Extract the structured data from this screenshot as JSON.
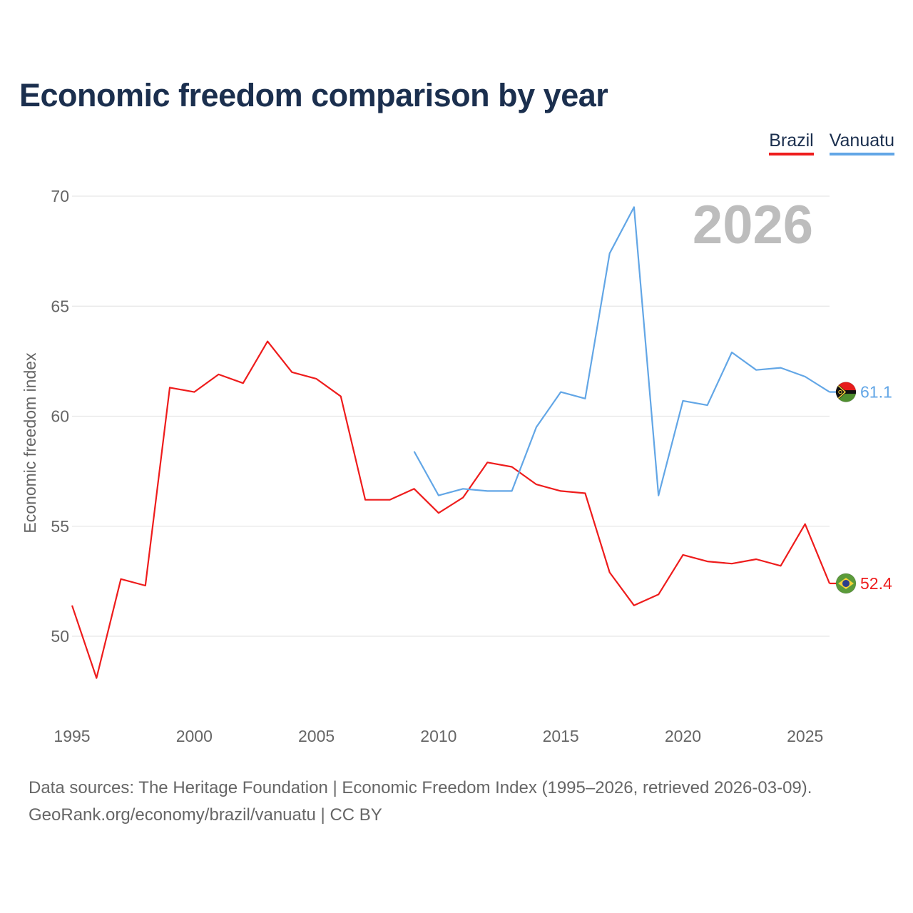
{
  "title": "Economic freedom comparison by year",
  "legend": {
    "brazil": "Brazil",
    "vanuatu": "Vanuatu"
  },
  "year_watermark": "2026",
  "footer": {
    "line1": "Data sources: The Heritage Foundation | Economic Freedom Index (1995–2026, retrieved 2026-03-09).",
    "line2": "GeoRank.org/economy/brazil/vanuatu | CC BY"
  },
  "colors": {
    "brazil": "#ee1c1c",
    "vanuatu": "#62a6e6",
    "grid": "#e6e6e6",
    "title": "#1b2f4e"
  },
  "chart_data": {
    "type": "line",
    "title": "Economic freedom comparison by year",
    "xlabel": "",
    "ylabel": "Economic freedom index",
    "xlim": [
      1995,
      2026
    ],
    "ylim": [
      46,
      71
    ],
    "x_ticks": [
      1995,
      2000,
      2005,
      2010,
      2015,
      2020,
      2025
    ],
    "y_ticks": [
      50,
      55,
      60,
      65,
      70
    ],
    "grid": true,
    "legend_position": "top-right",
    "series": [
      {
        "name": "Brazil",
        "key": "brazil",
        "end_label": "52.4",
        "points": [
          [
            1995,
            51.4
          ],
          [
            1996,
            48.1
          ],
          [
            1997,
            52.6
          ],
          [
            1998,
            52.3
          ],
          [
            1999,
            61.3
          ],
          [
            2000,
            61.1
          ],
          [
            2001,
            61.9
          ],
          [
            2002,
            61.5
          ],
          [
            2003,
            63.4
          ],
          [
            2004,
            62.0
          ],
          [
            2005,
            61.7
          ],
          [
            2006,
            60.9
          ],
          [
            2007,
            56.2
          ],
          [
            2008,
            56.2
          ],
          [
            2009,
            56.7
          ],
          [
            2010,
            55.6
          ],
          [
            2011,
            56.3
          ],
          [
            2012,
            57.9
          ],
          [
            2013,
            57.7
          ],
          [
            2014,
            56.9
          ],
          [
            2015,
            56.6
          ],
          [
            2016,
            56.5
          ],
          [
            2017,
            52.9
          ],
          [
            2018,
            51.4
          ],
          [
            2019,
            51.9
          ],
          [
            2020,
            53.7
          ],
          [
            2021,
            53.4
          ],
          [
            2022,
            53.3
          ],
          [
            2023,
            53.5
          ],
          [
            2024,
            53.2
          ],
          [
            2025,
            55.1
          ],
          [
            2026,
            52.4
          ]
        ]
      },
      {
        "name": "Vanuatu",
        "key": "vanuatu",
        "end_label": "61.1",
        "points": [
          [
            2009,
            58.4
          ],
          [
            2010,
            56.4
          ],
          [
            2011,
            56.7
          ],
          [
            2012,
            56.6
          ],
          [
            2013,
            56.6
          ],
          [
            2014,
            59.5
          ],
          [
            2015,
            61.1
          ],
          [
            2016,
            60.8
          ],
          [
            2017,
            67.4
          ],
          [
            2018,
            69.5
          ],
          [
            2019,
            56.4
          ],
          [
            2020,
            60.7
          ],
          [
            2021,
            60.5
          ],
          [
            2022,
            62.9
          ],
          [
            2023,
            62.1
          ],
          [
            2024,
            62.2
          ],
          [
            2025,
            61.8
          ],
          [
            2026,
            61.1
          ]
        ]
      }
    ]
  }
}
